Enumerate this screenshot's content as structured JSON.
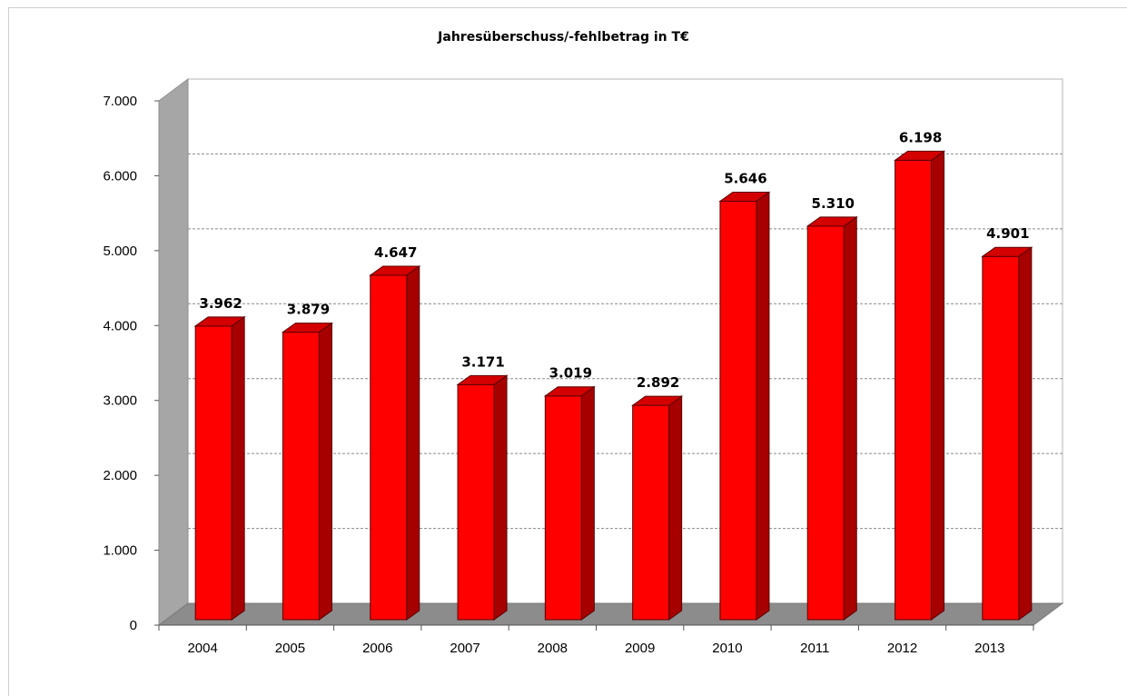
{
  "chart_data": {
    "type": "bar",
    "title": "Jahresüberschuss/-fehlbetrag in T€",
    "categories": [
      "2004",
      "2005",
      "2006",
      "2007",
      "2008",
      "2009",
      "2010",
      "2011",
      "2012",
      "2013"
    ],
    "values": [
      3962,
      3879,
      4647,
      3171,
      3019,
      2892,
      5646,
      5310,
      6198,
      4901
    ],
    "value_labels": [
      "3.962",
      "3.879",
      "4.647",
      "3.171",
      "3.019",
      "2.892",
      "5.646",
      "5.310",
      "6.198",
      "4.901"
    ],
    "yticks": [
      0,
      1000,
      2000,
      3000,
      4000,
      5000,
      6000,
      7000
    ],
    "ytick_labels": [
      "0",
      "1.000",
      "2.000",
      "3.000",
      "4.000",
      "5.000",
      "6.000",
      "7.000"
    ],
    "ylim": [
      0,
      7000
    ],
    "grid": true,
    "legend": "none",
    "style": "3d-column",
    "colors": {
      "bar_front": "#ff0000",
      "bar_side": "#a60000",
      "bar_top": "#d40000",
      "wall_side": "#a6a6a6",
      "floor": "#8c8c8c",
      "grid": "#8a8a8a"
    }
  }
}
